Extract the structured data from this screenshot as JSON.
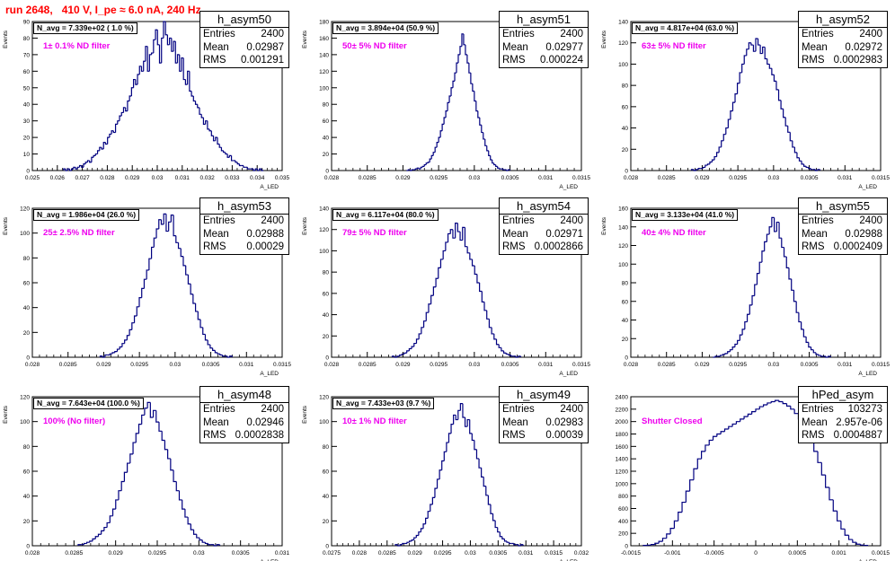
{
  "run_title": "run 2648,   410 V, I_pe ≈ 6.0 nA, 240 Hz",
  "colors": {
    "title": "#ff0000",
    "filter_label": "#ee00ee",
    "histogram": "#000080"
  },
  "panels": [
    {
      "name": "h_asym50",
      "navg": "N_avg = 7.339e+02 ( 1.0 %)",
      "filter": "1± 0.1% ND filter",
      "stats": {
        "entries": "2400",
        "mean": "0.02987",
        "rms": "0.001291"
      }
    },
    {
      "name": "h_asym51",
      "navg": "N_avg = 3.894e+04 (50.9 %)",
      "filter": "50± 5% ND filter",
      "stats": {
        "entries": "2400",
        "mean": "0.02977",
        "rms": "0.000224"
      }
    },
    {
      "name": "h_asym52",
      "navg": "N_avg = 4.817e+04 (63.0 %)",
      "filter": "63± 5% ND filter",
      "stats": {
        "entries": "2400",
        "mean": "0.02972",
        "rms": "0.0002983"
      }
    },
    {
      "name": "h_asym53",
      "navg": "N_avg = 1.986e+04 (26.0 %)",
      "filter": "25± 2.5% ND filter",
      "stats": {
        "entries": "2400",
        "mean": "0.02988",
        "rms": "0.00029"
      }
    },
    {
      "name": "h_asym54",
      "navg": "N_avg = 6.117e+04 (80.0 %)",
      "filter": "79± 5% ND filter",
      "stats": {
        "entries": "2400",
        "mean": "0.02971",
        "rms": "0.0002866"
      }
    },
    {
      "name": "h_asym55",
      "navg": "N_avg = 3.133e+04 (41.0 %)",
      "filter": "40± 4% ND filter",
      "stats": {
        "entries": "2400",
        "mean": "0.02988",
        "rms": "0.0002409"
      }
    },
    {
      "name": "h_asym48",
      "navg": "N_avg = 7.643e+04 (100.0 %)",
      "filter": "100% (No filter)",
      "stats": {
        "entries": "2400",
        "mean": "0.02946",
        "rms": "0.0002838"
      }
    },
    {
      "name": "h_asym49",
      "navg": "N_avg = 7.433e+03 (9.7 %)",
      "filter": "10± 1% ND filter",
      "stats": {
        "entries": "2400",
        "mean": "0.02983",
        "rms": "0.00039"
      }
    },
    {
      "name": "hPed_asym",
      "navg": "",
      "filter": "Shutter Closed",
      "stats": {
        "entries": "103273",
        "mean": "2.957e-06",
        "rms": "0.0004887"
      }
    }
  ],
  "stat_labels": {
    "entries": "Entries",
    "mean": "Mean",
    "rms": "RMS"
  },
  "chart_data": [
    {
      "type": "bar",
      "title": "h_asym50",
      "xlabel": "A_LED",
      "ylabel": "Events",
      "xlim": [
        0.025,
        0.035
      ],
      "ylim": [
        0,
        90
      ],
      "xticks": [
        "0.025",
        "0.026",
        "0.027",
        "0.028",
        "0.029",
        "0.03",
        "0.031",
        "0.032",
        "0.033",
        "0.034",
        "0.035"
      ],
      "yticks": [
        "0",
        "10",
        "20",
        "30",
        "40",
        "50",
        "60",
        "70",
        "80",
        "90"
      ],
      "stats": {
        "entries": 2400,
        "mean": 0.02987,
        "rms": 0.001291
      },
      "x_range": [
        0.02625,
        0.03425
      ],
      "values": [
        1,
        0,
        1,
        0,
        1,
        2,
        1,
        2,
        3,
        2,
        4,
        5,
        6,
        5,
        8,
        9,
        10,
        12,
        14,
        13,
        17,
        16,
        20,
        22,
        24,
        23,
        28,
        30,
        33,
        35,
        38,
        36,
        42,
        45,
        50,
        55,
        52,
        58,
        63,
        60,
        66,
        75,
        60,
        70,
        71,
        79,
        85,
        76,
        65,
        80,
        90,
        82,
        76,
        80,
        72,
        78,
        65,
        70,
        60,
        68,
        55,
        52,
        60,
        48,
        45,
        42,
        40,
        38,
        34,
        32,
        28,
        30,
        25,
        24,
        21,
        18,
        20,
        16,
        14,
        12,
        11,
        10,
        8,
        9,
        6,
        6,
        5,
        4,
        3,
        3,
        2,
        2,
        1,
        1,
        1,
        0,
        1,
        0,
        1,
        0
      ]
    },
    {
      "type": "bar",
      "title": "h_asym51",
      "xlabel": "A_LED",
      "ylabel": "Events",
      "xlim": [
        0.028,
        0.0315
      ],
      "ylim": [
        0,
        180
      ],
      "xticks": [
        "0.028",
        "0.0285",
        "0.029",
        "0.0295",
        "0.03",
        "0.0305",
        "0.031",
        "0.0315"
      ],
      "yticks": [
        "0",
        "20",
        "40",
        "60",
        "80",
        "100",
        "120",
        "140",
        "160",
        "180"
      ],
      "stats": {
        "entries": 2400,
        "mean": 0.02977,
        "rms": 0.000224
      },
      "x_range": [
        0.02905,
        0.0305
      ],
      "values": [
        0,
        1,
        0,
        1,
        1,
        2,
        3,
        2,
        4,
        5,
        7,
        9,
        10,
        14,
        18,
        22,
        28,
        34,
        40,
        48,
        56,
        64,
        72,
        82,
        90,
        100,
        108,
        118,
        130,
        140,
        150,
        165,
        152,
        140,
        130,
        118,
        105,
        96,
        84,
        72,
        64,
        55,
        46,
        38,
        30,
        24,
        18,
        13,
        9,
        7,
        5,
        3,
        2,
        2,
        1,
        1,
        0,
        1
      ]
    },
    {
      "type": "bar",
      "title": "h_asym52",
      "xlabel": "A_LED",
      "ylabel": "Events",
      "xlim": [
        0.028,
        0.0315
      ],
      "ylim": [
        0,
        140
      ],
      "xticks": [
        "0.028",
        "0.0285",
        "0.029",
        "0.0295",
        "0.03",
        "0.0305",
        "0.031",
        "0.0315"
      ],
      "yticks": [
        "0",
        "20",
        "40",
        "60",
        "80",
        "100",
        "120",
        "140"
      ],
      "stats": {
        "entries": 2400,
        "mean": 0.02972,
        "rms": 0.0002983
      },
      "x_range": [
        0.02885,
        0.03065
      ],
      "values": [
        1,
        0,
        1,
        2,
        2,
        3,
        5,
        6,
        8,
        10,
        13,
        17,
        22,
        28,
        34,
        40,
        48,
        56,
        64,
        72,
        82,
        92,
        100,
        108,
        114,
        120,
        118,
        112,
        124,
        118,
        110,
        116,
        105,
        100,
        96,
        90,
        84,
        76,
        66,
        58,
        50,
        42,
        36,
        28,
        22,
        17,
        12,
        9,
        6,
        4,
        3,
        2,
        1,
        1,
        0,
        1
      ]
    },
    {
      "type": "bar",
      "title": "h_asym53",
      "xlabel": "A_LED",
      "ylabel": "Events",
      "xlim": [
        0.028,
        0.0315
      ],
      "ylim": [
        0,
        130
      ],
      "xticks": [
        "0.028",
        "0.0285",
        "0.029",
        "0.0295",
        "0.03",
        "0.0305",
        "0.031",
        "0.0315"
      ],
      "yticks": [
        "0",
        "20",
        "40",
        "60",
        "80",
        "100",
        "120"
      ],
      "stats": {
        "entries": 2400,
        "mean": 0.02988,
        "rms": 0.00029
      },
      "x_range": [
        0.02895,
        0.0308
      ],
      "values": [
        1,
        0,
        2,
        2,
        3,
        4,
        5,
        7,
        9,
        12,
        15,
        19,
        24,
        30,
        36,
        44,
        52,
        60,
        68,
        76,
        86,
        96,
        104,
        112,
        120,
        116,
        125,
        110,
        118,
        124,
        106,
        100,
        95,
        88,
        80,
        72,
        64,
        55,
        47,
        40,
        33,
        26,
        20,
        15,
        11,
        8,
        6,
        4,
        3,
        2,
        1,
        1,
        0,
        1
      ]
    },
    {
      "type": "bar",
      "title": "h_asym54",
      "xlabel": "A_LED",
      "ylabel": "Events",
      "xlim": [
        0.028,
        0.0315
      ],
      "ylim": [
        0,
        140
      ],
      "xticks": [
        "0.028",
        "0.0285",
        "0.029",
        "0.0295",
        "0.03",
        "0.0305",
        "0.031",
        "0.0315"
      ],
      "yticks": [
        "0",
        "20",
        "40",
        "60",
        "80",
        "100",
        "120",
        "140"
      ],
      "stats": {
        "entries": 2400,
        "mean": 0.02971,
        "rms": 0.0002866
      },
      "x_range": [
        0.02885,
        0.03065
      ],
      "values": [
        1,
        0,
        1,
        2,
        3,
        4,
        6,
        8,
        10,
        13,
        17,
        22,
        28,
        34,
        42,
        50,
        58,
        66,
        74,
        84,
        92,
        100,
        108,
        116,
        120,
        112,
        126,
        118,
        110,
        122,
        104,
        98,
        92,
        86,
        78,
        70,
        62,
        52,
        44,
        36,
        28,
        22,
        17,
        12,
        9,
        6,
        4,
        3,
        2,
        1,
        1,
        0,
        1
      ]
    },
    {
      "type": "bar",
      "title": "h_asym55",
      "xlabel": "A_LED",
      "ylabel": "Events",
      "xlim": [
        0.028,
        0.0315
      ],
      "ylim": [
        0,
        160
      ],
      "xticks": [
        "0.028",
        "0.0285",
        "0.029",
        "0.0295",
        "0.03",
        "0.0305",
        "0.031",
        "0.0315"
      ],
      "yticks": [
        "0",
        "20",
        "40",
        "60",
        "80",
        "100",
        "120",
        "140",
        "160"
      ],
      "stats": {
        "entries": 2400,
        "mean": 0.02988,
        "rms": 0.0002409
      },
      "x_range": [
        0.02915,
        0.0308
      ],
      "values": [
        0,
        1,
        1,
        2,
        3,
        4,
        6,
        8,
        11,
        14,
        18,
        24,
        30,
        38,
        46,
        56,
        66,
        78,
        90,
        102,
        114,
        124,
        132,
        140,
        150,
        135,
        145,
        128,
        118,
        108,
        96,
        84,
        72,
        60,
        48,
        38,
        30,
        22,
        16,
        11,
        8,
        5,
        3,
        2,
        1,
        1,
        0,
        1
      ]
    },
    {
      "type": "bar",
      "title": "h_asym48",
      "xlabel": "A_LED",
      "ylabel": "Events",
      "xlim": [
        0.028,
        0.031
      ],
      "ylim": [
        0,
        130
      ],
      "xticks": [
        "0.028",
        "0.0285",
        "0.029",
        "0.0295",
        "0.03",
        "0.0305",
        "0.031"
      ],
      "yticks": [
        "0",
        "20",
        "40",
        "60",
        "80",
        "100",
        "120"
      ],
      "stats": {
        "entries": 2400,
        "mean": 0.02946,
        "rms": 0.0002838
      },
      "x_range": [
        0.02855,
        0.03025
      ],
      "values": [
        1,
        1,
        2,
        3,
        4,
        6,
        8,
        10,
        13,
        16,
        20,
        26,
        32,
        40,
        48,
        56,
        64,
        72,
        80,
        90,
        98,
        106,
        114,
        120,
        125,
        112,
        118,
        108,
        100,
        92,
        84,
        76,
        66,
        56,
        48,
        40,
        32,
        25,
        19,
        14,
        10,
        7,
        5,
        3,
        2,
        1,
        1,
        0,
        1
      ]
    },
    {
      "type": "bar",
      "title": "h_asym49",
      "xlabel": "A_LED",
      "ylabel": "Events",
      "xlim": [
        0.0275,
        0.032
      ],
      "ylim": [
        0,
        130
      ],
      "xticks": [
        "0.0275",
        "0.028",
        "0.0285",
        "0.029",
        "0.0295",
        "0.03",
        "0.0305",
        "0.031",
        "0.0315",
        "0.032"
      ],
      "yticks": [
        "0",
        "20",
        "40",
        "60",
        "80",
        "100",
        "120"
      ],
      "stats": {
        "entries": 2400,
        "mean": 0.02983,
        "rms": 0.00039
      },
      "x_range": [
        0.02865,
        0.03095
      ],
      "values": [
        1,
        0,
        1,
        2,
        2,
        3,
        4,
        5,
        7,
        9,
        12,
        15,
        19,
        24,
        30,
        36,
        42,
        50,
        58,
        66,
        74,
        82,
        90,
        98,
        106,
        114,
        110,
        118,
        124,
        112,
        104,
        110,
        98,
        92,
        84,
        76,
        68,
        60,
        52,
        44,
        36,
        28,
        22,
        16,
        12,
        8,
        6,
        4,
        3,
        2,
        2,
        1,
        1,
        0,
        1
      ]
    },
    {
      "type": "bar",
      "title": "hPed_asym",
      "xlabel": "A_LED",
      "ylabel": "",
      "xlim": [
        -0.0015,
        0.0015
      ],
      "ylim": [
        0,
        2400
      ],
      "xticks": [
        "-0.0015",
        "-0.001",
        "-0.0005",
        "0",
        "0.0005",
        "0.001",
        "0.0015"
      ],
      "yticks": [
        "0",
        "200",
        "400",
        "600",
        "800",
        "1000",
        "1200",
        "1400",
        "1600",
        "1800",
        "2000",
        "2200",
        "2400"
      ],
      "stats": {
        "entries": 103273,
        "mean": 2.957e-06,
        "rms": 0.0004887
      },
      "x_range": [
        -0.00135,
        0.00135
      ],
      "values": [
        5,
        10,
        20,
        40,
        70,
        120,
        190,
        280,
        400,
        540,
        700,
        880,
        1060,
        1240,
        1400,
        1520,
        1620,
        1700,
        1760,
        1800,
        1840,
        1880,
        1920,
        1960,
        2000,
        2040,
        2080,
        2120,
        2160,
        2200,
        2240,
        2270,
        2300,
        2320,
        2340,
        2320,
        2290,
        2250,
        2200,
        2130,
        2040,
        1940,
        1820,
        1680,
        1520,
        1340,
        1140,
        940,
        740,
        560,
        400,
        270,
        170,
        100,
        55,
        25,
        12,
        6
      ]
    }
  ]
}
